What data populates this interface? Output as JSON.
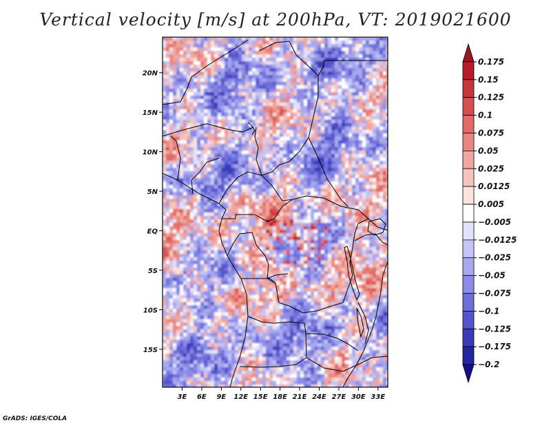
{
  "chart_data": {
    "type": "heatmap",
    "title": "Vertical velocity [m/s] at 200hPa, VT: 2019021600",
    "variable": "Vertical velocity",
    "units": "m/s",
    "level": "200hPa",
    "valid_time": "2019021600",
    "x_axis": {
      "ticks": [
        3,
        6,
        9,
        12,
        15,
        18,
        21,
        24,
        27,
        30,
        33
      ],
      "tick_labels": [
        "3E",
        "6E",
        "9E",
        "12E",
        "15E",
        "18E",
        "21E",
        "24E",
        "27E",
        "30E",
        "33E"
      ],
      "range": [
        0,
        34.5
      ]
    },
    "y_axis": {
      "ticks": [
        20,
        15,
        10,
        5,
        0,
        -5,
        -10,
        -15
      ],
      "tick_labels": [
        "20N",
        "15N",
        "10N",
        "5N",
        "EQ",
        "5S",
        "10S",
        "15S"
      ],
      "range": [
        -19.8,
        24.5
      ]
    },
    "colorbar": {
      "levels": [
        0.175,
        0.15,
        0.125,
        0.1,
        0.075,
        0.05,
        0.025,
        0.0125,
        0.005,
        -0.005,
        -0.0125,
        -0.025,
        -0.05,
        -0.075,
        -0.1,
        -0.125,
        -0.175,
        -0.2
      ],
      "labels": [
        "0.175",
        "0.15",
        "0.125",
        "0.1",
        "0.075",
        "0.05",
        "0.025",
        "0.0125",
        "0.005",
        "−0.005",
        "−0.0125",
        "−0.025",
        "−0.05",
        "−0.075",
        "−0.1",
        "−0.125",
        "−0.175",
        "−0.2"
      ],
      "colors": [
        "#9e1420",
        "#b71c26",
        "#c8353a",
        "#d64f4f",
        "#e06a66",
        "#e8867f",
        "#f0a59e",
        "#f6c4be",
        "#fbe2de",
        "#ffffff",
        "#e2e2fa",
        "#c6c6f4",
        "#a8a8ee",
        "#8c8ce6",
        "#6f6fdc",
        "#5454cc",
        "#3a3ab8",
        "#24249e",
        "#160e86"
      ]
    }
  },
  "credit": "GrADS: IGES/COLA"
}
